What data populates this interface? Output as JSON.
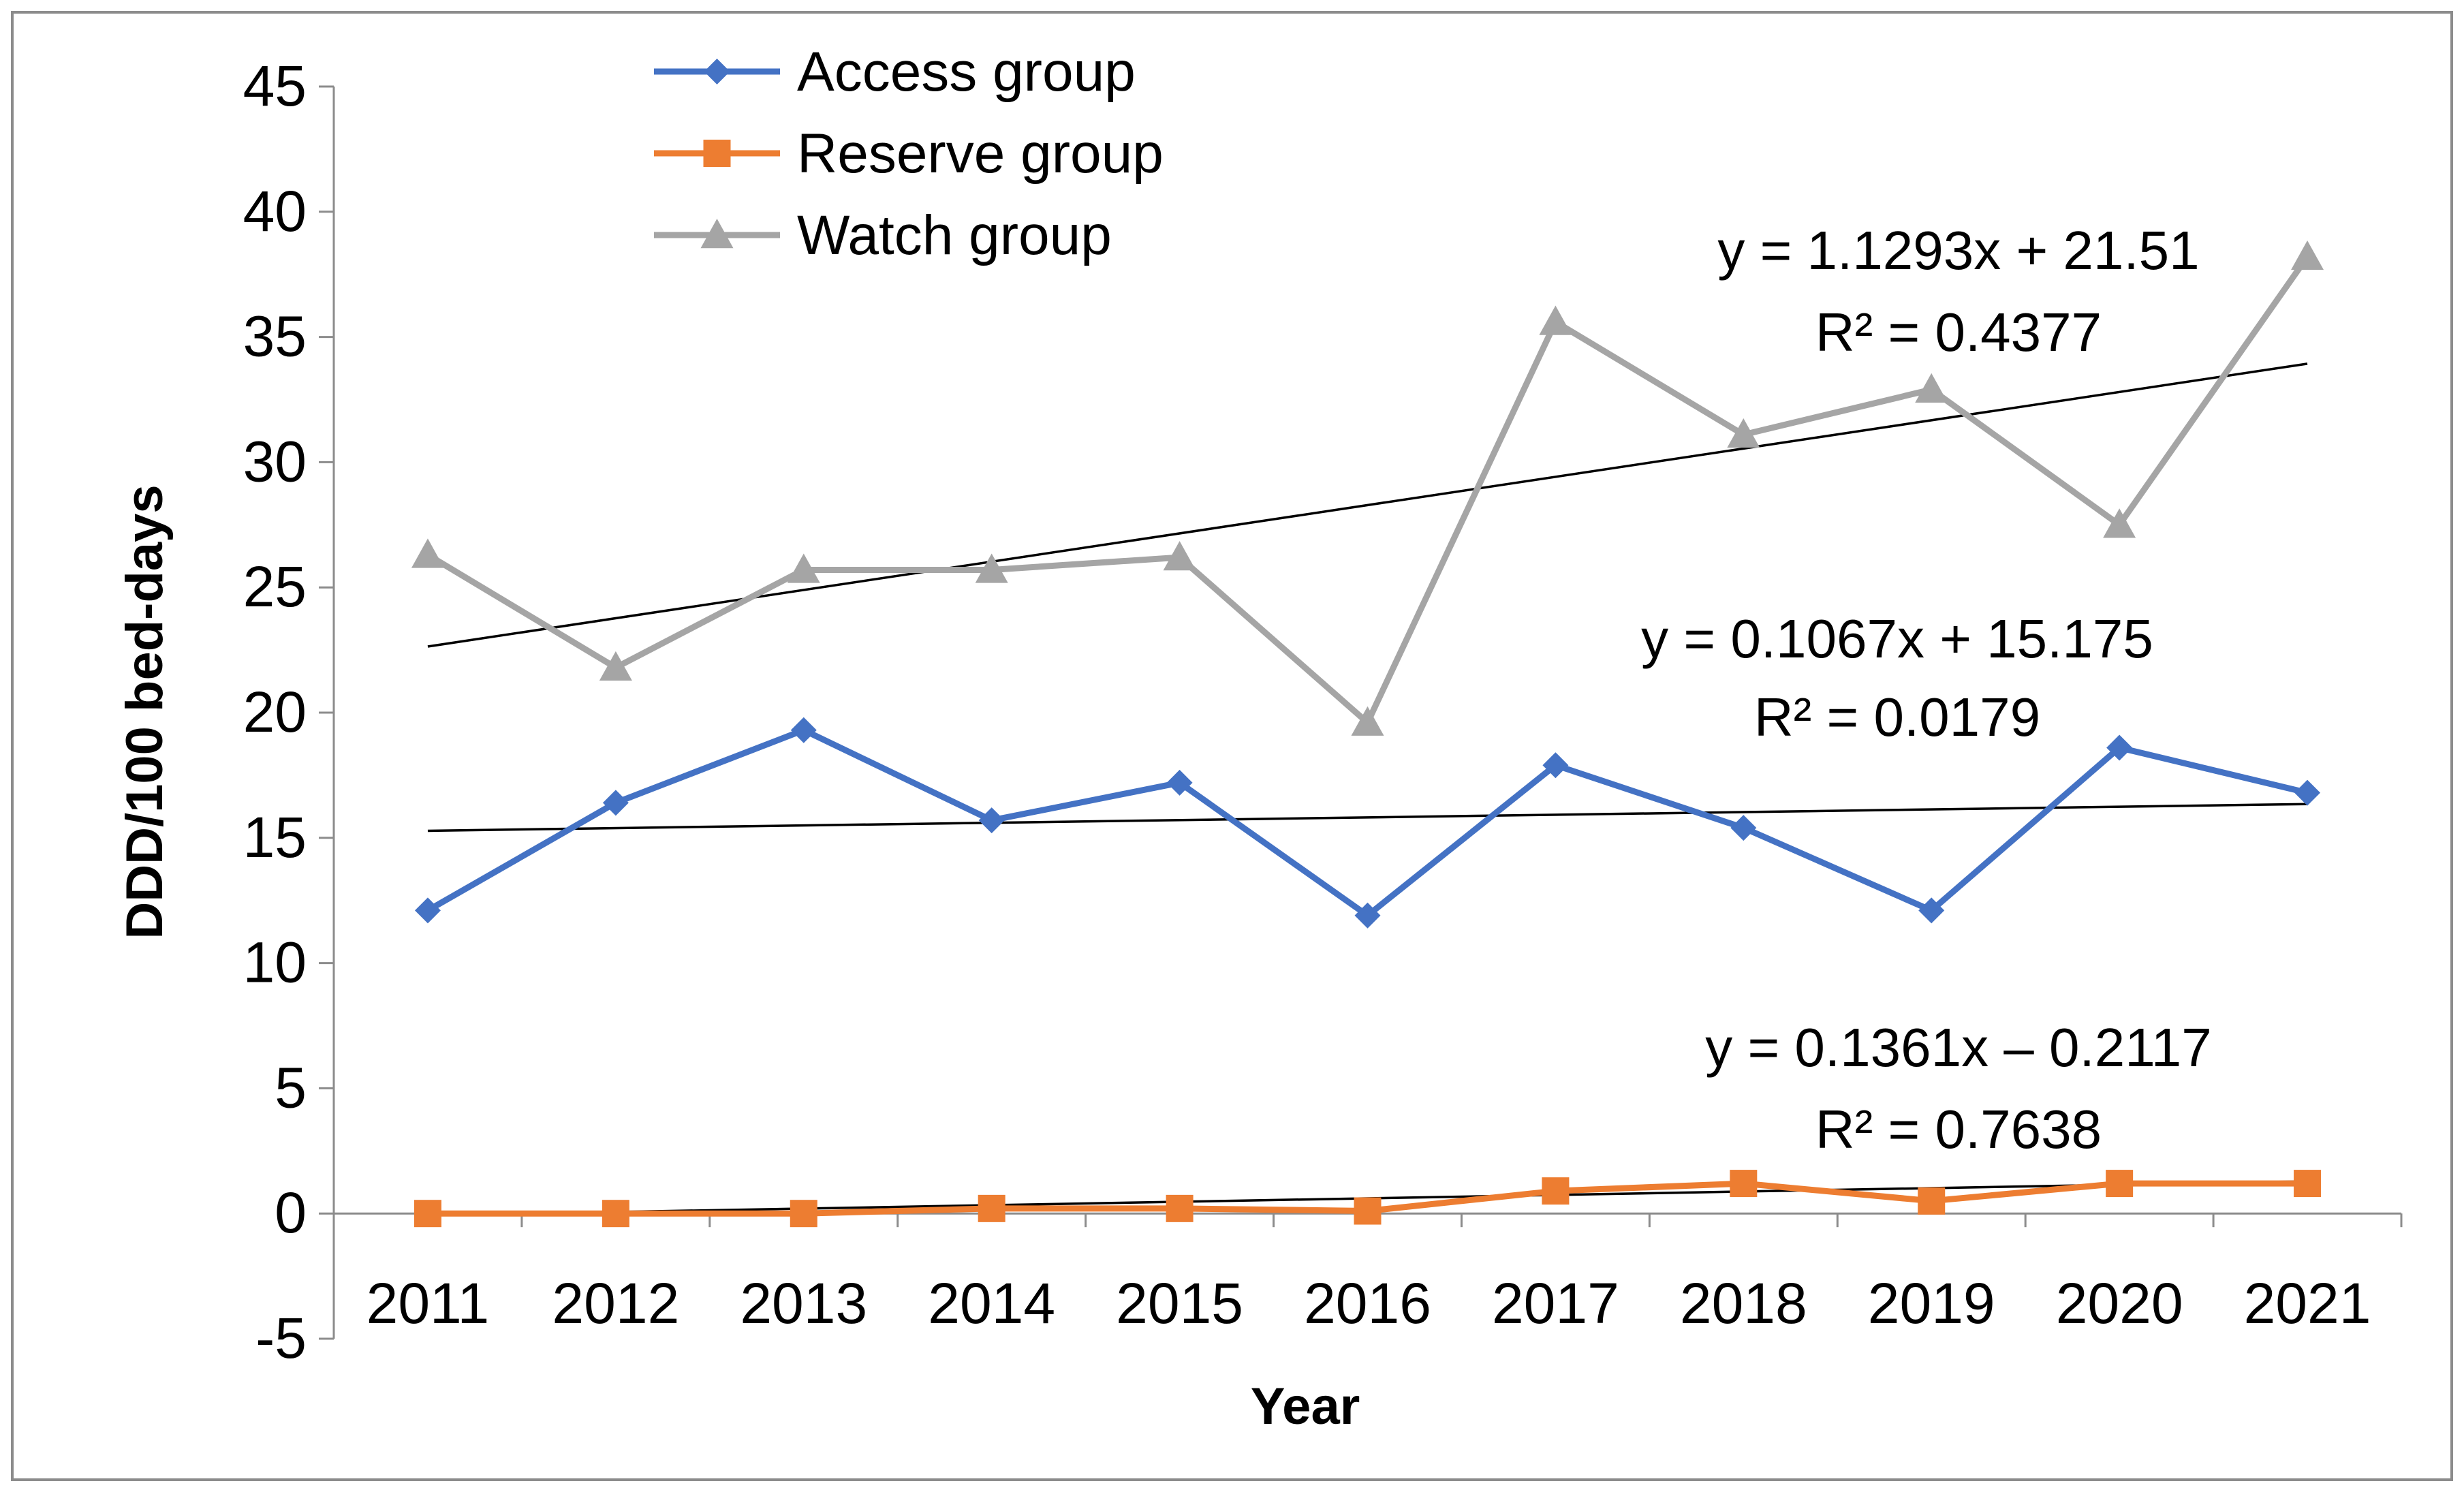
{
  "chart_data": {
    "type": "line",
    "title": "",
    "xlabel": "Year",
    "ylabel": "DDD/100 bed-days",
    "ylim": [
      -5,
      45
    ],
    "yticks": [
      -5,
      0,
      5,
      10,
      15,
      20,
      25,
      30,
      35,
      40,
      45
    ],
    "categories": [
      "2011",
      "2012",
      "2013",
      "2014",
      "2015",
      "2016",
      "2017",
      "2018",
      "2019",
      "2020",
      "2021"
    ],
    "grid": false,
    "legend_position": "top-left",
    "series": [
      {
        "name": "Access group",
        "color": "#4472C4",
        "marker": "diamond",
        "values": [
          12.1,
          16.4,
          19.3,
          15.7,
          17.2,
          11.9,
          17.9,
          15.4,
          12.1,
          18.6,
          16.8
        ],
        "trendline": {
          "slope": 0.1067,
          "intercept": 15.175,
          "equation": "y = 0.1067x + 15.175",
          "r2_label": "R² = 0.0179"
        }
      },
      {
        "name": "Reserve group",
        "color": "#ED7D31",
        "marker": "square",
        "values": [
          0.0,
          0.0,
          0.0,
          0.2,
          0.2,
          0.1,
          0.9,
          1.2,
          0.5,
          1.2,
          1.2
        ],
        "trendline": {
          "slope": 0.1361,
          "intercept": -0.2117,
          "equation": "y = 0.1361x – 0.2117",
          "r2_label": "R² = 0.7638"
        }
      },
      {
        "name": "Watch group",
        "color": "#A5A5A5",
        "marker": "triangle",
        "values": [
          26.3,
          21.8,
          25.7,
          25.7,
          26.2,
          19.6,
          35.6,
          31.1,
          32.9,
          27.5,
          38.2
        ],
        "trendline": {
          "slope": 1.1293,
          "intercept": 21.51,
          "equation": "y = 1.1293x + 21.51",
          "r2_label": "R² = 0.4377"
        }
      }
    ],
    "trendline_color": "#000000"
  }
}
